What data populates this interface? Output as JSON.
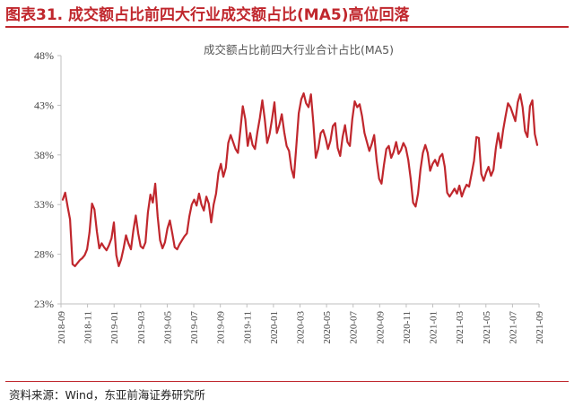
{
  "figure": {
    "title": "图表31. 成交额占比前四大行业成交额占比(MA5)高位回落",
    "source": "资料来源：Wind，东亚前海证券研究所"
  },
  "colors": {
    "accent": "#c0272d",
    "line": "#c0272d"
  },
  "chart_data": {
    "type": "line",
    "title": "成交额占比前四大行业合计占比(MA5)",
    "xlabel": "",
    "ylabel": "",
    "ylim": [
      23,
      48
    ],
    "y_ticks": [
      "48%",
      "43%",
      "38%",
      "33%",
      "28%",
      "23%"
    ],
    "y_tick_values": [
      48,
      43,
      38,
      33,
      28,
      23
    ],
    "x_ticks": [
      "2018-09",
      "2018-11",
      "2019-01",
      "2019-03",
      "2019-05",
      "2019-07",
      "2019-09",
      "2019-11",
      "2020-01",
      "2020-03",
      "2020-05",
      "2020-07",
      "2020-09",
      "2020-11",
      "2021-01",
      "2021-03",
      "2021-05",
      "2021-07",
      "2021-09"
    ],
    "grid": false,
    "legend": "none",
    "series": [
      {
        "name": "",
        "x_start": "2018-09",
        "x_end": "2021-09",
        "values": [
          33.5,
          34.2,
          32.8,
          31.5,
          27.0,
          26.8,
          27.1,
          27.4,
          27.6,
          27.9,
          28.5,
          30.2,
          33.1,
          32.5,
          30.3,
          28.6,
          29.1,
          28.7,
          28.4,
          28.9,
          29.6,
          31.2,
          27.9,
          26.8,
          27.5,
          28.6,
          29.9,
          29.1,
          28.5,
          30.4,
          31.9,
          30.1,
          28.8,
          28.6,
          29.2,
          32.2,
          34.0,
          33.2,
          35.1,
          31.8,
          29.4,
          28.6,
          29.2,
          30.6,
          31.4,
          30.1,
          28.7,
          28.5,
          29.0,
          29.4,
          29.8,
          30.1,
          31.8,
          33.0,
          33.5,
          32.9,
          34.1,
          33.0,
          32.4,
          33.8,
          33.1,
          31.2,
          33.0,
          34.1,
          36.2,
          37.1,
          35.8,
          36.7,
          39.2,
          40.0,
          39.3,
          38.6,
          38.2,
          40.5,
          42.9,
          41.6,
          38.9,
          40.2,
          39.0,
          38.6,
          40.3,
          41.7,
          43.5,
          41.6,
          39.2,
          40.1,
          41.6,
          43.3,
          40.2,
          41.0,
          42.1,
          40.3,
          38.9,
          38.4,
          36.6,
          35.7,
          38.9,
          42.2,
          43.6,
          44.2,
          43.2,
          42.8,
          44.1,
          41.2,
          37.7,
          38.6,
          40.2,
          40.5,
          39.7,
          38.6,
          39.4,
          40.9,
          41.2,
          38.7,
          37.9,
          39.8,
          41.0,
          39.3,
          38.9,
          41.6,
          43.4,
          42.8,
          43.1,
          41.9,
          40.2,
          39.3,
          38.4,
          39.1,
          40.0,
          37.4,
          35.6,
          35.1,
          37.0,
          38.6,
          38.9,
          37.7,
          38.3,
          39.3,
          38.1,
          38.5,
          39.2,
          38.7,
          37.5,
          35.6,
          33.2,
          32.8,
          34.1,
          36.5,
          38.2,
          39.0,
          38.2,
          36.4,
          37.1,
          37.5,
          36.9,
          37.8,
          38.1,
          36.8,
          34.2,
          33.8,
          34.2,
          34.6,
          34.1,
          34.9,
          33.8,
          34.5,
          35.0,
          34.8,
          36.1,
          37.4,
          39.8,
          39.7,
          36.1,
          35.4,
          36.2,
          36.8,
          35.9,
          36.5,
          38.7,
          40.2,
          38.7,
          40.5,
          41.9,
          43.2,
          42.8,
          42.1,
          41.4,
          43.3,
          44.1,
          42.8,
          40.4,
          39.8,
          42.9,
          43.5,
          40.1,
          39.0
        ]
      }
    ]
  }
}
